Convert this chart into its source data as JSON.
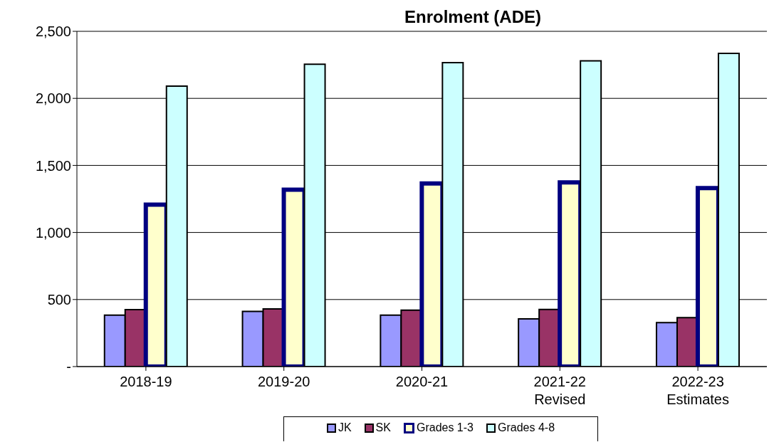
{
  "chart_data": {
    "type": "bar",
    "title": "Enrolment (ADE)",
    "categories": [
      "2018-19",
      "2019-20",
      "2020-21",
      "2021-22\nRevised",
      "2022-23\nEstimates"
    ],
    "series": [
      {
        "name": "JK",
        "color": "#9999ff",
        "values": [
          383,
          411,
          383,
          356,
          328
        ]
      },
      {
        "name": "SK",
        "color": "#993366",
        "values": [
          424,
          430,
          420,
          426,
          365
        ]
      },
      {
        "name": "Grades 1-3",
        "color": "#ffffcc",
        "values": [
          1207,
          1319,
          1365,
          1374,
          1331
        ]
      },
      {
        "name": "Grades 4-8",
        "color": "#ccffff",
        "values": [
          2091,
          2254,
          2267,
          2280,
          2335
        ]
      }
    ],
    "ylim": [
      0,
      2500
    ],
    "yticks": [
      {
        "value": 0,
        "label": "-"
      },
      500,
      {
        "value": 1000,
        "label": "1,000"
      },
      {
        "value": 1500,
        "label": "1,500"
      },
      {
        "value": 2000,
        "label": "2,000"
      },
      {
        "value": 2500,
        "label": "2,500"
      }
    ],
    "grid": "y",
    "legend": "bottom"
  }
}
